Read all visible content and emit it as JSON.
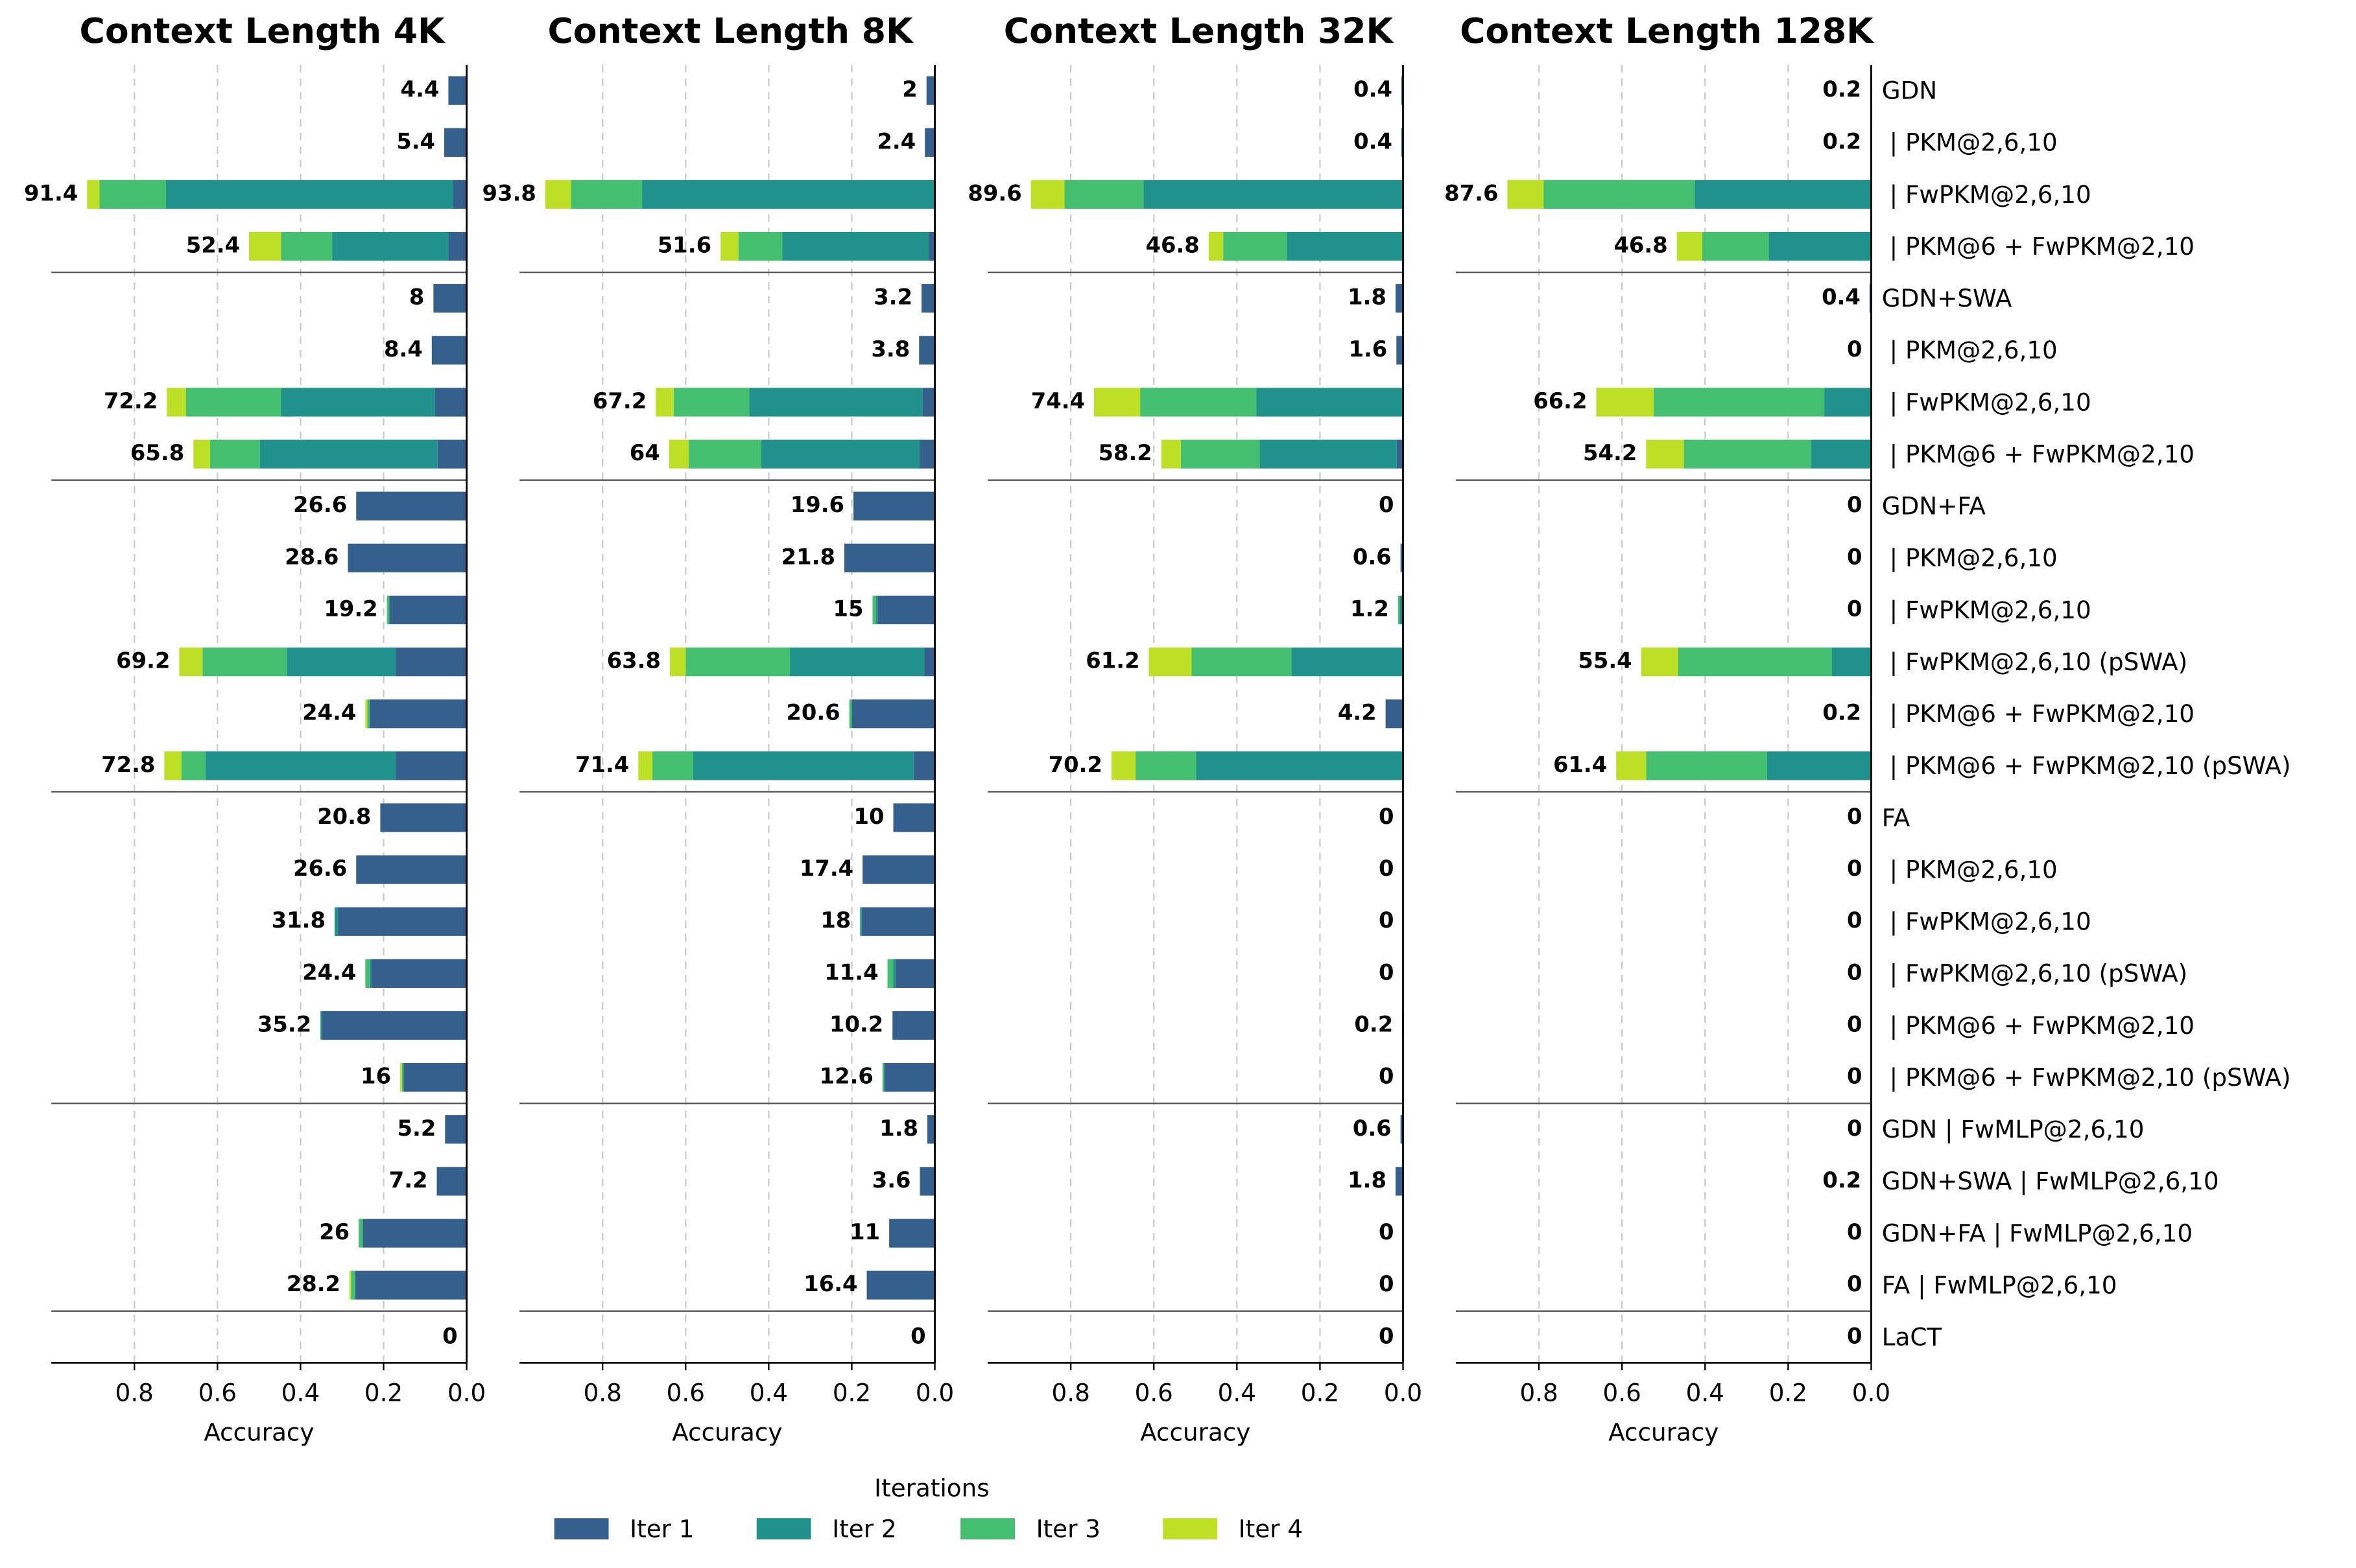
{
  "chart_data": {
    "type": "bar",
    "orientation": "horizontal",
    "stacked": true,
    "categories": [
      "GDN",
      " | PKM@2,6,10",
      " | FwPKM@2,6,10",
      " | PKM@6 + FwPKM@2,10",
      "GDN+SWA",
      " | PKM@2,6,10",
      " | FwPKM@2,6,10",
      " | PKM@6 + FwPKM@2,10",
      "GDN+FA",
      " | PKM@2,6,10",
      " | FwPKM@2,6,10",
      " | FwPKM@2,6,10 (pSWA)",
      " | PKM@6 + FwPKM@2,10",
      " | PKM@6 + FwPKM@2,10 (pSWA)",
      "FA",
      " | PKM@2,6,10",
      " | FwPKM@2,6,10",
      " | FwPKM@2,6,10 (pSWA)",
      " | PKM@6 + FwPKM@2,10",
      " | PKM@6 + FwPKM@2,10 (pSWA)",
      "GDN | FwMLP@2,6,10",
      "GDN+SWA | FwMLP@2,6,10",
      "GDN+FA | FwMLP@2,6,10",
      "FA | FwMLP@2,6,10",
      "LaCT"
    ],
    "x_label": "Accuracy",
    "xlim": [
      1.0,
      0
    ],
    "xticks": [
      0.8,
      0.6,
      0.4,
      0.2,
      {
        "value": 0,
        "label": "0.0"
      }
    ],
    "grid": true,
    "legend_title": "Iterations",
    "legend_position": "bottom",
    "series": [
      {
        "name": "Iter 1",
        "color": "#355f8d"
      },
      {
        "name": "Iter 2",
        "color": "#21918c"
      },
      {
        "name": "Iter 3",
        "color": "#44bf70"
      },
      {
        "name": "Iter 4",
        "color": "#bddf26"
      }
    ],
    "panels": [
      {
        "title": "Context Length 4K",
        "values": [
          [
            0.044,
            0.054,
            0.033,
            0.044,
            0.08,
            0.084,
            0.076,
            0.07,
            0.266,
            0.286,
            0.186,
            0.171,
            0.234,
            0.171,
            0.208,
            0.266,
            0.31,
            0.23,
            0.348,
            0.152,
            0.052,
            0.072,
            0.25,
            0.268,
            0
          ],
          [
            0,
            0,
            0.691,
            0.28,
            0,
            0,
            0.371,
            0.428,
            0,
            0,
            0,
            0.262,
            0,
            0.458,
            0,
            0,
            0.008,
            0.004,
            0.004,
            0,
            0,
            0,
            0,
            0,
            0
          ],
          [
            0,
            0,
            0.16,
            0.123,
            0,
            0,
            0.229,
            0.12,
            0,
            0,
            0.006,
            0.203,
            0.005,
            0.058,
            0,
            0,
            0,
            0.01,
            0,
            0.004,
            0,
            0,
            0.01,
            0.01,
            0
          ],
          [
            0,
            0,
            0.03,
            0.077,
            0,
            0,
            0.046,
            0.04,
            0,
            0,
            0,
            0.056,
            0.005,
            0.041,
            0,
            0,
            0,
            0,
            0,
            0.004,
            0,
            0,
            0,
            0.004,
            0
          ]
        ],
        "totals": [
          0.044,
          0.054,
          0.914,
          0.524,
          0.08,
          0.084,
          0.722,
          0.658,
          0.266,
          0.286,
          0.192,
          0.692,
          0.244,
          0.728,
          0.208,
          0.266,
          0.318,
          0.244,
          0.352,
          0.16,
          0.052,
          0.072,
          0.26,
          0.282,
          0
        ],
        "total_labels": [
          "4.4",
          "5.4",
          "91.4",
          "52.4",
          "8",
          "8.4",
          "72.2",
          "65.8",
          "26.6",
          "28.6",
          "19.2",
          "69.2",
          "24.4",
          "72.8",
          "20.8",
          "26.6",
          "31.8",
          "24.4",
          "35.2",
          "16",
          "5.2",
          "7.2",
          "26",
          "28.2",
          "0"
        ]
      },
      {
        "title": "Context Length 8K",
        "values": [
          [
            0.02,
            0.024,
            0,
            0.015,
            0.032,
            0.038,
            0.03,
            0.036,
            0.196,
            0.218,
            0.138,
            0.025,
            0.2,
            0.051,
            0.1,
            0.174,
            0.176,
            0.095,
            0.102,
            0.122,
            0.018,
            0.036,
            0.11,
            0.164,
            0
          ],
          [
            0,
            0,
            0.705,
            0.352,
            0,
            0,
            0.417,
            0.382,
            0,
            0,
            0.004,
            0.324,
            0,
            0.531,
            0,
            0,
            0.004,
            0.005,
            0,
            0,
            0,
            0,
            0,
            0,
            0
          ],
          [
            0,
            0,
            0.171,
            0.106,
            0,
            0,
            0.182,
            0.175,
            0,
            0,
            0.008,
            0.251,
            0.006,
            0.098,
            0,
            0,
            0,
            0.014,
            0,
            0.004,
            0,
            0,
            0,
            0,
            0
          ],
          [
            0,
            0,
            0.062,
            0.043,
            0,
            0,
            0.043,
            0.047,
            0,
            0,
            0,
            0.038,
            0,
            0.034,
            0,
            0,
            0,
            0,
            0,
            0,
            0,
            0,
            0,
            0,
            0
          ]
        ],
        "totals": [
          0.02,
          0.024,
          0.938,
          0.516,
          0.032,
          0.038,
          0.672,
          0.64,
          0.196,
          0.218,
          0.15,
          0.638,
          0.206,
          0.714,
          0.1,
          0.174,
          0.18,
          0.114,
          0.102,
          0.126,
          0.018,
          0.036,
          0.11,
          0.164,
          0
        ],
        "total_labels": [
          "2",
          "2.4",
          "93.8",
          "51.6",
          "3.2",
          "3.8",
          "67.2",
          "64",
          "19.6",
          "21.8",
          "15",
          "63.8",
          "20.6",
          "71.4",
          "10",
          "17.4",
          "18",
          "11.4",
          "10.2",
          "12.6",
          "1.8",
          "3.6",
          "11",
          "16.4",
          "0"
        ]
      },
      {
        "title": "Context Length 32K",
        "values": [
          [
            0.004,
            0.004,
            0,
            0,
            0.018,
            0.016,
            0,
            0.015,
            0,
            0.006,
            0.004,
            0,
            0.042,
            0,
            0,
            0,
            0,
            0,
            0.002,
            0,
            0.006,
            0.018,
            0,
            0,
            0
          ],
          [
            0,
            0,
            0.625,
            0.28,
            0,
            0,
            0.353,
            0.33,
            0,
            0,
            0.004,
            0.269,
            0,
            0.498,
            0,
            0,
            0,
            0,
            0,
            0,
            0,
            0,
            0,
            0,
            0
          ],
          [
            0,
            0,
            0.19,
            0.153,
            0,
            0,
            0.28,
            0.19,
            0,
            0,
            0.004,
            0.24,
            0,
            0.146,
            0,
            0,
            0,
            0,
            0,
            0,
            0,
            0,
            0,
            0,
            0
          ],
          [
            0,
            0,
            0.081,
            0.035,
            0,
            0,
            0.111,
            0.047,
            0,
            0,
            0,
            0.103,
            0,
            0.058,
            0,
            0,
            0,
            0,
            0,
            0,
            0,
            0,
            0,
            0,
            0
          ]
        ],
        "totals": [
          0.004,
          0.004,
          0.896,
          0.468,
          0.018,
          0.016,
          0.744,
          0.582,
          0,
          0.006,
          0.012,
          0.612,
          0.042,
          0.702,
          0,
          0,
          0,
          0,
          0.002,
          0,
          0.006,
          0.018,
          0,
          0,
          0
        ],
        "total_labels": [
          "0.4",
          "0.4",
          "89.6",
          "46.8",
          "1.8",
          "1.6",
          "74.4",
          "58.2",
          "0",
          "0.6",
          "1.2",
          "61.2",
          "4.2",
          "70.2",
          "0",
          "0",
          "0",
          "0",
          "0.2",
          "0",
          "0.6",
          "1.8",
          "0",
          "0",
          "0"
        ]
      },
      {
        "title": "Context Length 128K",
        "values": [
          [
            0.002,
            0.002,
            0,
            0,
            0.004,
            0,
            0,
            0,
            0,
            0,
            0,
            0,
            0.002,
            0,
            0,
            0,
            0,
            0,
            0,
            0,
            0,
            0.002,
            0,
            0,
            0
          ],
          [
            0,
            0,
            0.425,
            0.247,
            0,
            0,
            0.113,
            0.145,
            0,
            0,
            0,
            0.095,
            0,
            0.251,
            0,
            0,
            0,
            0,
            0,
            0,
            0,
            0,
            0,
            0,
            0
          ],
          [
            0,
            0,
            0.364,
            0.16,
            0,
            0,
            0.411,
            0.306,
            0,
            0,
            0,
            0.37,
            0,
            0.291,
            0,
            0,
            0,
            0,
            0,
            0,
            0,
            0,
            0,
            0,
            0
          ],
          [
            0,
            0,
            0.087,
            0.061,
            0,
            0,
            0.138,
            0.091,
            0,
            0,
            0,
            0.089,
            0,
            0.072,
            0,
            0,
            0,
            0,
            0,
            0,
            0,
            0,
            0,
            0,
            0
          ]
        ],
        "totals": [
          0.002,
          0.002,
          0.876,
          0.468,
          0.004,
          0,
          0.662,
          0.542,
          0,
          0,
          0,
          0.554,
          0.002,
          0.614,
          0,
          0,
          0,
          0,
          0,
          0,
          0,
          0.002,
          0,
          0,
          0
        ],
        "total_labels": [
          "0.2",
          "0.2",
          "87.6",
          "46.8",
          "0.4",
          "0",
          "66.2",
          "54.2",
          "0",
          "0",
          "0",
          "55.4",
          "0.2",
          "61.4",
          "0",
          "0",
          "0",
          "0",
          "0",
          "0",
          "0",
          "0.2",
          "0",
          "0",
          "0"
        ]
      }
    ]
  }
}
